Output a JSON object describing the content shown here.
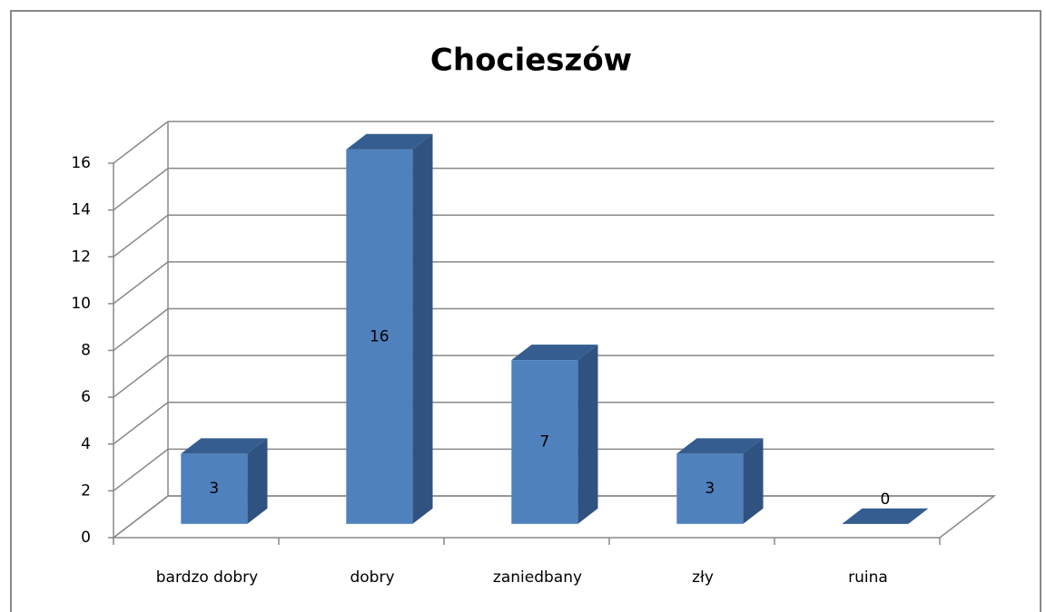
{
  "chart_data": {
    "type": "bar3d",
    "title": "Chocieszów",
    "categories": [
      "bardzo dobry",
      "dobry",
      "zaniedbany",
      "zły",
      "ruina"
    ],
    "values": [
      3,
      16,
      7,
      3,
      0
    ],
    "color": "#4f81bd",
    "ylim": [
      0,
      16
    ],
    "yticks": [
      0,
      2,
      4,
      6,
      8,
      10,
      12,
      14,
      16
    ],
    "grid": true
  }
}
